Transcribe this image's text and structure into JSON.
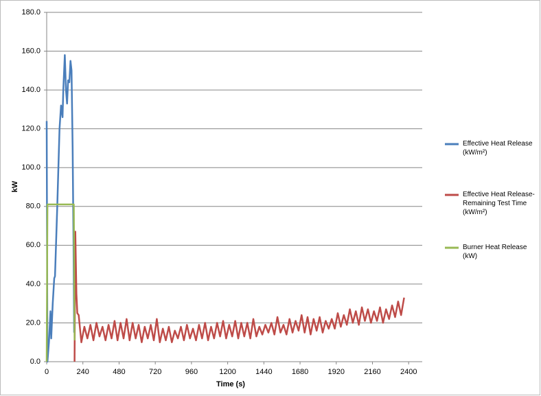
{
  "chart_data": {
    "type": "line",
    "x_label": "Time (s)",
    "y_label": "kW",
    "xlim": [
      0,
      2490
    ],
    "ylim": [
      0,
      180
    ],
    "xticks": [
      0,
      240,
      480,
      720,
      960,
      1200,
      1440,
      1680,
      1920,
      2160,
      2400
    ],
    "yticks": [
      {
        "value": 0,
        "label": "0.0"
      },
      {
        "value": 20,
        "label": "20.0"
      },
      {
        "value": 40,
        "label": "40.0"
      },
      {
        "value": 60,
        "label": "60.0"
      },
      {
        "value": 80,
        "label": "80.0"
      },
      {
        "value": 100,
        "label": "100.0"
      },
      {
        "value": 120,
        "label": "120.0"
      },
      {
        "value": 140,
        "label": "140.0"
      },
      {
        "value": 160,
        "label": "160.0"
      },
      {
        "value": 180,
        "label": "180.0"
      }
    ],
    "grid": true,
    "legend": "right",
    "series": [
      {
        "name": "Effective Heat Release (kW/m²)",
        "color": "#4a7ebb",
        "x": [
          0,
          5,
          15,
          25,
          30,
          40,
          50,
          55,
          70,
          85,
          95,
          105,
          110,
          120,
          128,
          135,
          142,
          150,
          158,
          165,
          172,
          178,
          182
        ],
        "values": [
          124,
          0,
          10,
          26,
          12,
          30,
          43,
          44,
          80,
          120,
          132,
          126,
          140,
          158,
          140,
          133,
          145,
          144,
          155,
          150,
          110,
          60,
          15
        ]
      },
      {
        "name": "Effective Heat Release-Remaining Test Time (kW/m²)",
        "color": "#be4b48",
        "x": [
          185,
          190,
          197,
          203,
          212,
          230,
          250,
          270,
          290,
          310,
          330,
          350,
          370,
          390,
          410,
          430,
          450,
          470,
          490,
          510,
          530,
          550,
          570,
          590,
          610,
          630,
          650,
          670,
          690,
          710,
          730,
          750,
          770,
          790,
          810,
          830,
          850,
          870,
          890,
          910,
          930,
          950,
          970,
          990,
          1010,
          1030,
          1050,
          1070,
          1090,
          1110,
          1130,
          1150,
          1170,
          1190,
          1210,
          1230,
          1250,
          1270,
          1290,
          1310,
          1330,
          1350,
          1370,
          1390,
          1410,
          1430,
          1450,
          1470,
          1490,
          1510,
          1530,
          1550,
          1570,
          1590,
          1610,
          1630,
          1650,
          1670,
          1690,
          1710,
          1730,
          1750,
          1770,
          1790,
          1810,
          1830,
          1850,
          1870,
          1890,
          1910,
          1930,
          1950,
          1970,
          1990,
          2010,
          2030,
          2050,
          2070,
          2090,
          2110,
          2130,
          2150,
          2170,
          2190,
          2210,
          2230,
          2250,
          2270,
          2290,
          2310,
          2330,
          2350,
          2370
        ],
        "values": [
          0,
          67,
          35,
          25,
          24,
          10,
          18,
          12,
          19,
          11,
          20,
          13,
          18,
          11,
          19,
          12,
          21,
          11,
          20,
          12,
          22,
          11,
          20,
          12,
          19,
          10,
          18,
          12,
          19,
          11,
          22,
          10,
          17,
          11,
          18,
          10,
          16,
          12,
          18,
          11,
          19,
          12,
          17,
          11,
          19,
          12,
          20,
          11,
          18,
          12,
          20,
          13,
          21,
          12,
          19,
          13,
          21,
          12,
          20,
          13,
          20,
          12,
          22,
          13,
          18,
          14,
          19,
          15,
          20,
          14,
          23,
          15,
          19,
          14,
          22,
          15,
          21,
          16,
          24,
          15,
          23,
          14,
          22,
          16,
          23,
          15,
          21,
          17,
          22,
          17,
          25,
          18,
          24,
          19,
          27,
          20,
          26,
          19,
          28,
          21,
          27,
          20,
          26,
          21,
          28,
          20,
          27,
          22,
          29,
          23,
          31,
          24,
          33
        ]
      },
      {
        "name": "Burner Heat Release (kW)",
        "color": "#98b954",
        "x": [
          0,
          5,
          180,
          185
        ],
        "values": [
          0,
          81,
          81,
          11
        ]
      }
    ]
  }
}
